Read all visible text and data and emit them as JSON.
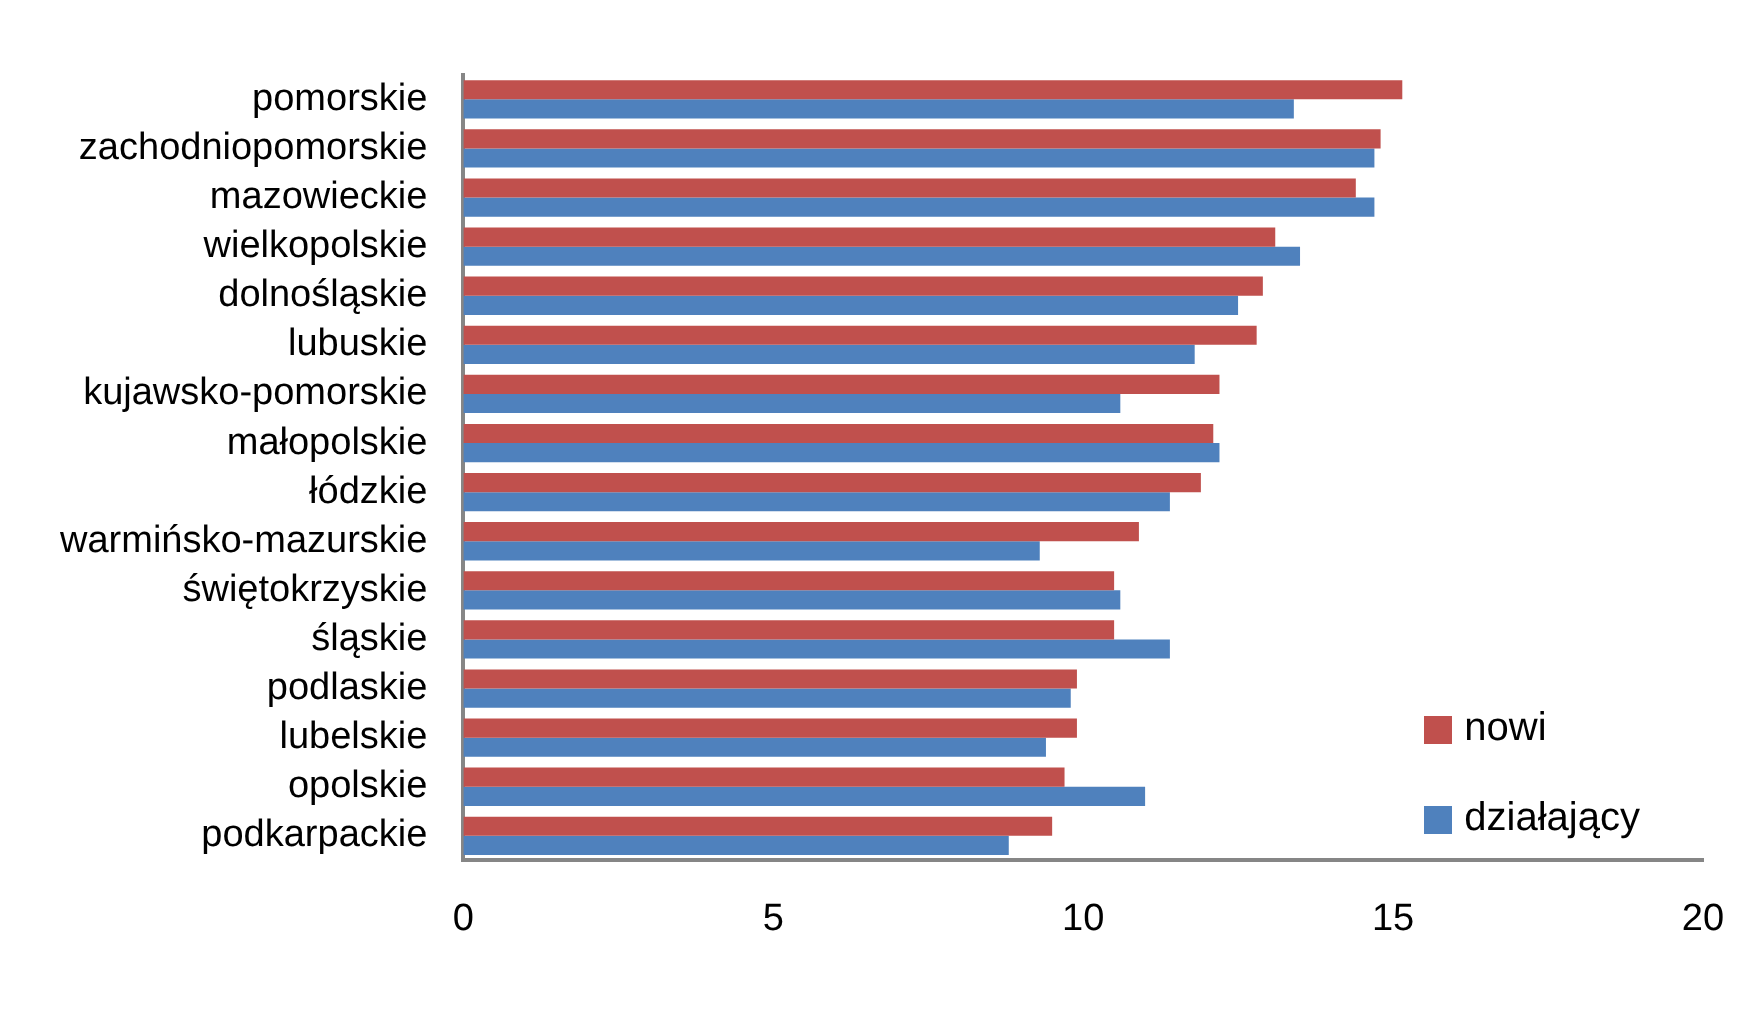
{
  "chart_data": {
    "type": "bar",
    "orientation": "horizontal",
    "categories": [
      "pomorskie",
      "zachodniopomorskie",
      "mazowieckie",
      "wielkopolskie",
      "dolnośląskie",
      "lubuskie",
      "kujawsko-pomorskie",
      "małopolskie",
      "łódzkie",
      "warmińsko-mazurskie",
      "świętokrzyskie",
      "śląskie",
      "podlaskie",
      "lubelskie",
      "opolskie",
      "podkarpackie"
    ],
    "series": [
      {
        "name": "nowi",
        "color": "#c0504d",
        "values": [
          15.15,
          14.8,
          14.4,
          13.1,
          12.9,
          12.8,
          12.2,
          12.1,
          11.9,
          10.9,
          10.5,
          10.5,
          9.9,
          9.9,
          9.7,
          9.5
        ]
      },
      {
        "name": "działający",
        "color": "#4f81bd",
        "values": [
          13.4,
          14.7,
          14.7,
          13.5,
          12.5,
          11.8,
          10.6,
          12.2,
          11.4,
          9.3,
          10.6,
          11.4,
          9.8,
          9.4,
          11.0,
          8.8
        ]
      }
    ],
    "xlim": [
      0,
      20
    ],
    "xticks": [
      0,
      5,
      10,
      15,
      20
    ],
    "grid": false,
    "legend": "right"
  }
}
